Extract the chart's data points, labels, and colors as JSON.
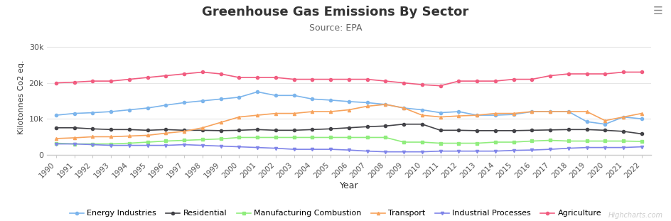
{
  "title": "Greenhouse Gas Emissions By Sector",
  "subtitle": "Source: EPA",
  "xlabel": "Year",
  "ylabel": "Kilotonnes Co2 eq.",
  "watermark": "Highcharts.com",
  "years": [
    1990,
    1991,
    1992,
    1993,
    1994,
    1995,
    1996,
    1997,
    1998,
    1999,
    2000,
    2001,
    2002,
    2003,
    2004,
    2005,
    2006,
    2007,
    2008,
    2009,
    2010,
    2011,
    2012,
    2013,
    2014,
    2015,
    2016,
    2017,
    2018,
    2019,
    2020,
    2021,
    2022
  ],
  "series": {
    "Energy Industries": {
      "color": "#7cb5ec",
      "marker": "o",
      "data": [
        11000,
        11500,
        11700,
        12000,
        12500,
        13000,
        13800,
        14500,
        15000,
        15500,
        16000,
        17500,
        16500,
        16500,
        15500,
        15200,
        14800,
        14500,
        14000,
        13000,
        12500,
        11700,
        12000,
        11000,
        11000,
        11200,
        12000,
        12000,
        12000,
        9200,
        8500,
        10500,
        10000
      ]
    },
    "Residential": {
      "color": "#434348",
      "marker": "o",
      "data": [
        7500,
        7500,
        7200,
        7000,
        7000,
        6800,
        7000,
        6800,
        6800,
        6700,
        6800,
        7000,
        6800,
        6800,
        7000,
        7200,
        7500,
        7800,
        8000,
        8500,
        8500,
        6800,
        6800,
        6700,
        6700,
        6700,
        6800,
        6900,
        7000,
        7000,
        6800,
        6500,
        5800
      ]
    },
    "Manufacturing Combustion": {
      "color": "#90ed7d",
      "marker": "s",
      "data": [
        3200,
        3000,
        3000,
        3000,
        3200,
        3500,
        3800,
        4000,
        4200,
        4400,
        4800,
        4800,
        4800,
        4800,
        4800,
        4800,
        4800,
        4800,
        4800,
        3500,
        3500,
        3200,
        3200,
        3200,
        3500,
        3500,
        3800,
        4000,
        3800,
        3800,
        3800,
        3800,
        3700
      ]
    },
    "Transport": {
      "color": "#f7a35c",
      "marker": "^",
      "data": [
        4500,
        4700,
        5000,
        5000,
        5200,
        5400,
        6000,
        6500,
        7500,
        9000,
        10500,
        11000,
        11500,
        11500,
        12000,
        12000,
        12500,
        13500,
        14000,
        13000,
        11000,
        10500,
        10800,
        11000,
        11500,
        11500,
        12000,
        12000,
        12000,
        12000,
        9500,
        10500,
        11500
      ]
    },
    "Industrial Processes": {
      "color": "#8085e9",
      "marker": "v",
      "data": [
        3000,
        3000,
        2800,
        2600,
        2600,
        2600,
        2600,
        2800,
        2600,
        2400,
        2200,
        2000,
        1800,
        1500,
        1500,
        1500,
        1300,
        1000,
        800,
        800,
        800,
        1000,
        1000,
        1000,
        1000,
        1200,
        1300,
        1500,
        1800,
        2000,
        2000,
        2000,
        2200
      ]
    },
    "Agriculture": {
      "color": "#f15c80",
      "marker": "o",
      "data": [
        20000,
        20200,
        20500,
        20500,
        21000,
        21500,
        22000,
        22500,
        23000,
        22500,
        21500,
        21500,
        21500,
        21000,
        21000,
        21000,
        21000,
        21000,
        20500,
        20000,
        19500,
        19200,
        20500,
        20500,
        20500,
        21000,
        21000,
        22000,
        22500,
        22500,
        22500,
        23000,
        23000
      ]
    }
  },
  "ylim": [
    0,
    32000
  ],
  "yticks": [
    0,
    10000,
    20000,
    30000
  ],
  "ytick_labels": [
    "0",
    "10k",
    "20k",
    "30k"
  ],
  "background_color": "#ffffff",
  "plot_bg_color": "#ffffff",
  "grid_color": "#e6e6e6",
  "title_fontsize": 13,
  "subtitle_fontsize": 9,
  "axis_fontsize": 8,
  "legend_fontsize": 8
}
